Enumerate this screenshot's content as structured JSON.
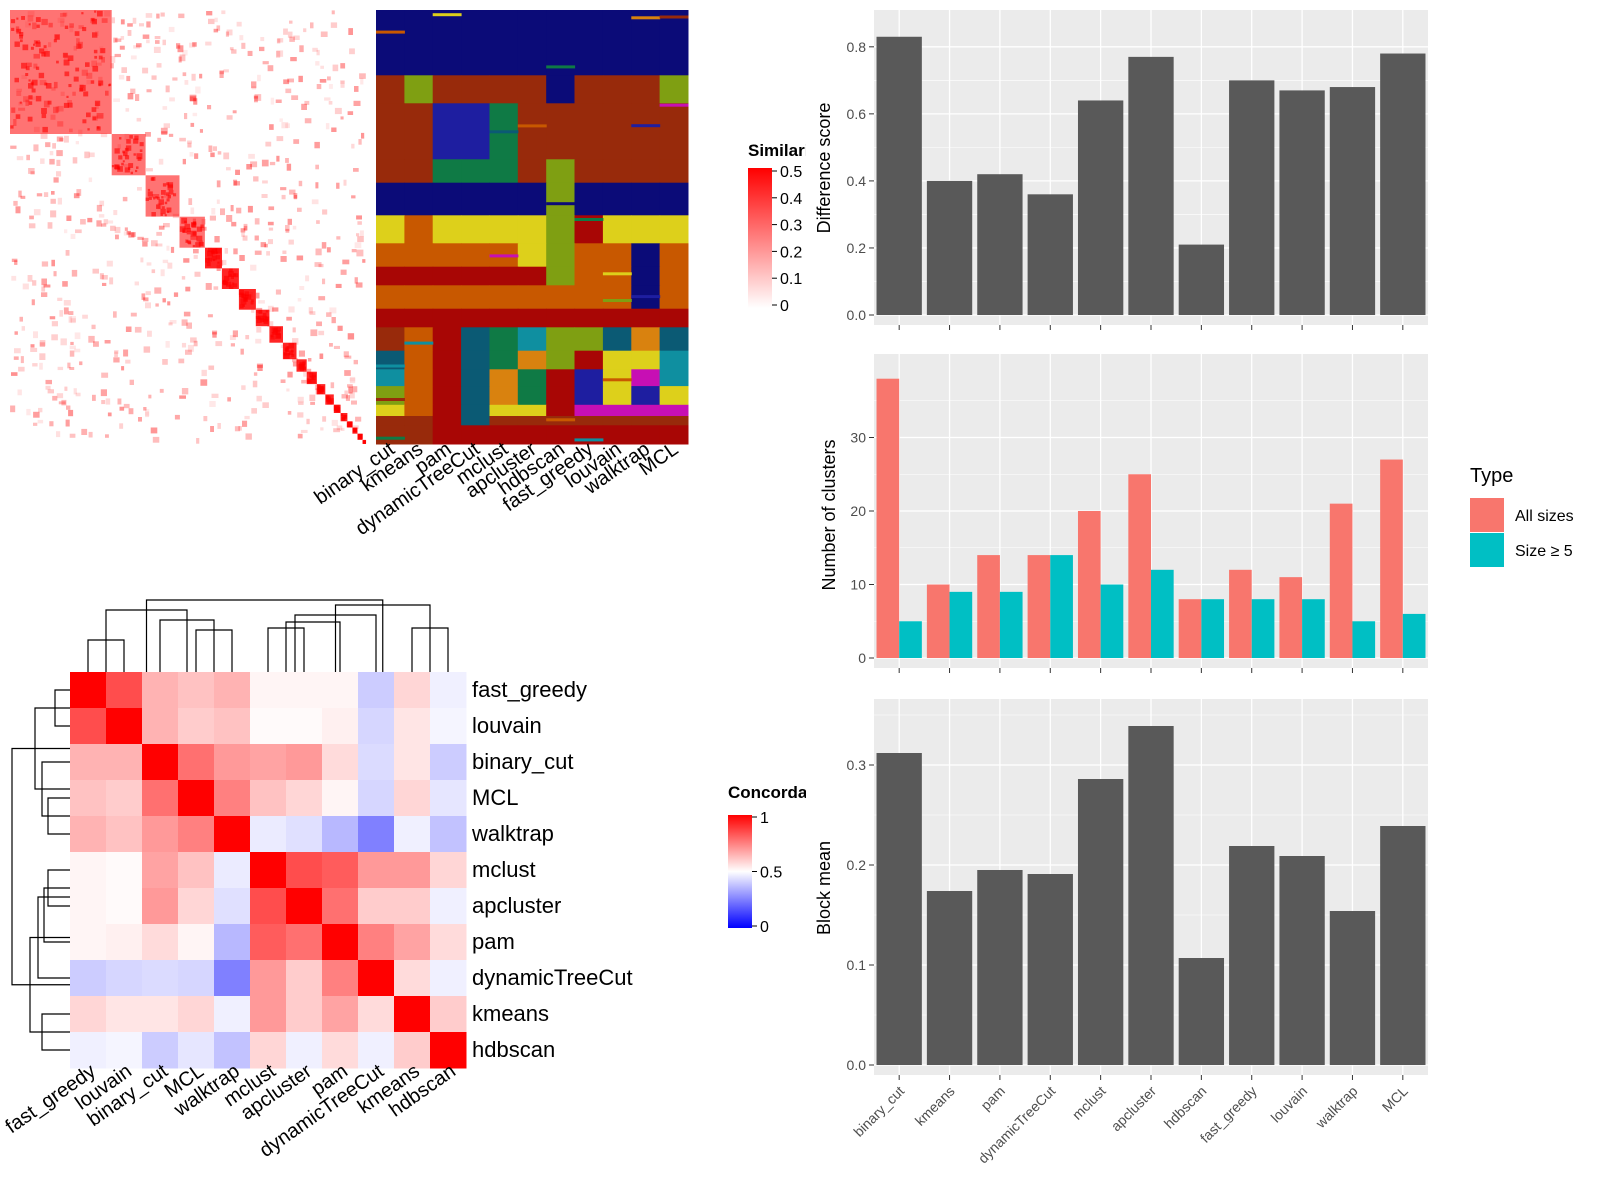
{
  "chart_data": [
    {
      "type": "heatmap",
      "panel": "similarity-matrix",
      "legend_title": "Similarity",
      "legend_ticks": [
        "0.5",
        "0.4",
        "0.3",
        "0.2",
        "0.1",
        "0"
      ],
      "legend_colors": [
        "#ff0000",
        "#ffffff"
      ],
      "diagonal_blocks": [
        60,
        20,
        20,
        15,
        10,
        10,
        10,
        8,
        8,
        8,
        6,
        6,
        5,
        5,
        4,
        4,
        3,
        3,
        3,
        2
      ]
    },
    {
      "type": "heatmap",
      "panel": "cluster-assignments",
      "columns": [
        "binary_cut",
        "kmeans",
        "pam",
        "dynamicTreeCut",
        "mclust",
        "apcluster",
        "hdbscan",
        "fast_greedy",
        "louvain",
        "walktrap",
        "MCL"
      ],
      "palette": [
        "#0b0b78",
        "#982a0b",
        "#7f9f12",
        "#c85800",
        "#ddd01b",
        "#a80605",
        "#0f7a45",
        "#0b5a74",
        "#d9820f",
        "#1e1ea0",
        "#c70fb4",
        "#0f8fa0"
      ],
      "row_bands": [
        {
          "h": 70,
          "c": [
            0,
            0,
            0,
            0,
            0,
            0,
            0,
            0,
            0,
            0,
            0
          ]
        },
        {
          "h": 30,
          "c": [
            1,
            2,
            1,
            1,
            1,
            1,
            0,
            1,
            1,
            1,
            2
          ]
        },
        {
          "h": 60,
          "c": [
            1,
            1,
            9,
            9,
            6,
            1,
            1,
            1,
            1,
            1,
            1
          ]
        },
        {
          "h": 25,
          "c": [
            1,
            1,
            6,
            6,
            6,
            1,
            2,
            1,
            1,
            1,
            1
          ]
        },
        {
          "h": 35,
          "c": [
            0,
            0,
            0,
            0,
            0,
            0,
            2,
            0,
            0,
            0,
            0
          ]
        },
        {
          "h": 30,
          "c": [
            4,
            3,
            4,
            4,
            4,
            4,
            2,
            5,
            4,
            4,
            4
          ]
        },
        {
          "h": 25,
          "c": [
            3,
            3,
            3,
            3,
            3,
            4,
            2,
            3,
            3,
            0,
            3
          ]
        },
        {
          "h": 20,
          "c": [
            5,
            5,
            5,
            5,
            5,
            5,
            2,
            3,
            3,
            0,
            3
          ]
        },
        {
          "h": 25,
          "c": [
            3,
            3,
            3,
            3,
            3,
            3,
            3,
            3,
            3,
            0,
            3
          ]
        },
        {
          "h": 20,
          "c": [
            5,
            5,
            5,
            5,
            5,
            5,
            5,
            5,
            5,
            5,
            5
          ]
        },
        {
          "h": 25,
          "c": [
            1,
            3,
            5,
            7,
            6,
            11,
            2,
            2,
            7,
            8,
            7
          ]
        },
        {
          "h": 20,
          "c": [
            7,
            3,
            5,
            7,
            6,
            8,
            2,
            5,
            4,
            4,
            11
          ]
        },
        {
          "h": 18,
          "c": [
            11,
            3,
            5,
            7,
            8,
            6,
            5,
            9,
            4,
            10,
            11
          ]
        },
        {
          "h": 20,
          "c": [
            2,
            3,
            5,
            7,
            8,
            6,
            5,
            9,
            4,
            9,
            4
          ]
        },
        {
          "h": 12,
          "c": [
            4,
            3,
            5,
            7,
            4,
            4,
            5,
            10,
            10,
            10,
            10
          ]
        },
        {
          "h": 10,
          "c": [
            1,
            1,
            5,
            7,
            1,
            1,
            1,
            1,
            1,
            1,
            1
          ]
        },
        {
          "h": 20,
          "c": [
            1,
            1,
            5,
            5,
            5,
            5,
            5,
            5,
            5,
            5,
            5
          ]
        }
      ]
    },
    {
      "type": "heatmap",
      "panel": "concordance",
      "legend_title": "Concordance",
      "legend_ticks": [
        "1",
        "0.5",
        "0"
      ],
      "legend_colors": [
        "#ff0000",
        "#ffffff",
        "#0000ff"
      ],
      "labels": [
        "fast_greedy",
        "louvain",
        "binary_cut",
        "MCL",
        "walktrap",
        "mclust",
        "apcluster",
        "pam",
        "dynamicTreeCut",
        "kmeans",
        "hdbscan"
      ],
      "matrix": [
        [
          1.0,
          0.85,
          0.65,
          0.62,
          0.65,
          0.52,
          0.52,
          0.52,
          0.4,
          0.58,
          0.47
        ],
        [
          0.85,
          1.0,
          0.65,
          0.6,
          0.62,
          0.51,
          0.51,
          0.53,
          0.42,
          0.55,
          0.48
        ],
        [
          0.65,
          0.65,
          1.0,
          0.78,
          0.7,
          0.68,
          0.7,
          0.57,
          0.43,
          0.55,
          0.4
        ],
        [
          0.62,
          0.6,
          0.78,
          1.0,
          0.75,
          0.62,
          0.58,
          0.52,
          0.42,
          0.58,
          0.45
        ],
        [
          0.65,
          0.62,
          0.7,
          0.75,
          1.0,
          0.46,
          0.44,
          0.36,
          0.25,
          0.47,
          0.38
        ],
        [
          0.52,
          0.51,
          0.68,
          0.62,
          0.46,
          1.0,
          0.85,
          0.82,
          0.7,
          0.7,
          0.58
        ],
        [
          0.52,
          0.51,
          0.7,
          0.58,
          0.44,
          0.85,
          1.0,
          0.78,
          0.6,
          0.6,
          0.47
        ],
        [
          0.52,
          0.53,
          0.57,
          0.52,
          0.36,
          0.82,
          0.78,
          1.0,
          0.75,
          0.68,
          0.57
        ],
        [
          0.4,
          0.42,
          0.43,
          0.42,
          0.25,
          0.7,
          0.6,
          0.75,
          1.0,
          0.57,
          0.47
        ],
        [
          0.58,
          0.55,
          0.55,
          0.58,
          0.47,
          0.7,
          0.6,
          0.68,
          0.57,
          1.0,
          0.6
        ],
        [
          0.47,
          0.48,
          0.4,
          0.45,
          0.38,
          0.58,
          0.47,
          0.57,
          0.47,
          0.6,
          1.0
        ]
      ]
    },
    {
      "type": "bar",
      "panel": "difference-score",
      "categories": [
        "binary_cut",
        "kmeans",
        "pam",
        "dynamicTreeCut",
        "mclust",
        "apcluster",
        "hdbscan",
        "fast_greedy",
        "louvain",
        "walktrap",
        "MCL"
      ],
      "values": [
        0.83,
        0.4,
        0.42,
        0.36,
        0.64,
        0.77,
        0.21,
        0.7,
        0.67,
        0.68,
        0.78
      ],
      "ylabel": "Difference score",
      "ylim": [
        0,
        0.88
      ],
      "yticks": [
        "0.0",
        "0.2",
        "0.4",
        "0.6",
        "0.8"
      ],
      "ytick_values": [
        0,
        0.2,
        0.4,
        0.6,
        0.8
      ],
      "color": "#595959"
    },
    {
      "type": "bar",
      "panel": "number-of-clusters",
      "categories": [
        "binary_cut",
        "kmeans",
        "pam",
        "dynamicTreeCut",
        "mclust",
        "apcluster",
        "hdbscan",
        "fast_greedy",
        "louvain",
        "walktrap",
        "MCL"
      ],
      "series": [
        {
          "name": "All sizes",
          "color": "#f8766d",
          "values": [
            38,
            10,
            14,
            14,
            20,
            25,
            8,
            12,
            11,
            21,
            27
          ]
        },
        {
          "name": "Size ≥ 5",
          "color": "#00bfc4",
          "values": [
            5,
            9,
            9,
            14,
            10,
            12,
            8,
            8,
            8,
            5,
            6
          ]
        }
      ],
      "ylabel": "Number of clusters",
      "ylim": [
        0,
        40
      ],
      "yticks": [
        "0",
        "10",
        "20",
        "30"
      ],
      "ytick_values": [
        0,
        10,
        20,
        30
      ],
      "legend_title": "Type",
      "legend_position": "right"
    },
    {
      "type": "bar",
      "panel": "block-mean",
      "categories": [
        "binary_cut",
        "kmeans",
        "pam",
        "dynamicTreeCut",
        "mclust",
        "apcluster",
        "hdbscan",
        "fast_greedy",
        "louvain",
        "walktrap",
        "MCL"
      ],
      "values": [
        0.312,
        0.174,
        0.195,
        0.191,
        0.286,
        0.339,
        0.107,
        0.219,
        0.209,
        0.154,
        0.239
      ],
      "ylabel": "Block mean",
      "ylim": [
        0,
        0.356
      ],
      "yticks": [
        "0.0",
        "0.1",
        "0.2",
        "0.3"
      ],
      "ytick_values": [
        0,
        0.1,
        0.2,
        0.3
      ],
      "color": "#595959"
    }
  ]
}
